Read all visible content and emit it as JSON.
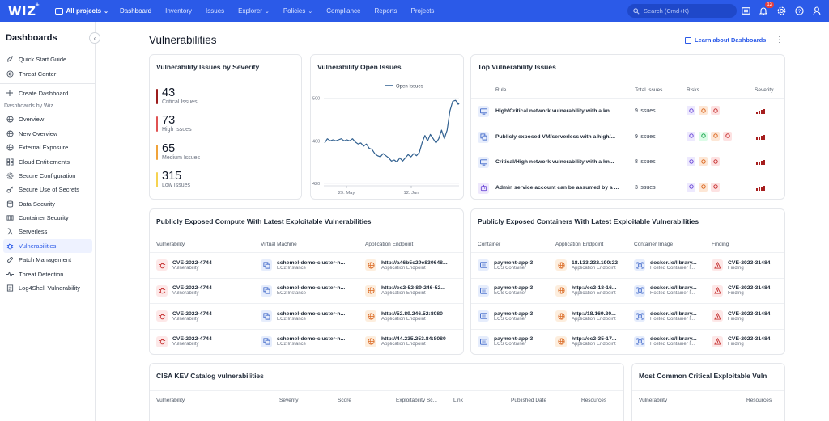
{
  "nav": {
    "logo": "WIZ",
    "logo_sup": "+",
    "projects_label": "All projects",
    "items": [
      {
        "label": "Dashboard",
        "active": true
      },
      {
        "label": "Inventory"
      },
      {
        "label": "Issues"
      },
      {
        "label": "Explorer",
        "dropdown": true
      },
      {
        "label": "Policies",
        "dropdown": true
      },
      {
        "label": "Compliance"
      },
      {
        "label": "Reports"
      },
      {
        "label": "Projects"
      }
    ],
    "search_placeholder": "Search (Cmd+K)",
    "notification_count": "12"
  },
  "sidebar": {
    "title": "Dashboards",
    "top_items": [
      {
        "label": "Quick Start Guide",
        "icon": "rocket-icon"
      },
      {
        "label": "Threat Center",
        "icon": "target-icon"
      }
    ],
    "create_label": "Create Dashboard",
    "group_label": "Dashboards by Wiz",
    "items": [
      {
        "label": "Overview",
        "icon": "globe-icon"
      },
      {
        "label": "New Overview",
        "icon": "globe-icon"
      },
      {
        "label": "External Exposure",
        "icon": "globe-icon"
      },
      {
        "label": "Cloud Entitlements",
        "icon": "grid-icon"
      },
      {
        "label": "Secure Configuration",
        "icon": "gear-icon"
      },
      {
        "label": "Secure Use of Secrets",
        "icon": "key-icon"
      },
      {
        "label": "Data Security",
        "icon": "database-icon"
      },
      {
        "label": "Container Security",
        "icon": "container-icon"
      },
      {
        "label": "Serverless",
        "icon": "lambda-icon"
      },
      {
        "label": "Vulnerabilities",
        "icon": "bug-icon",
        "active": true
      },
      {
        "label": "Patch Management",
        "icon": "patch-icon"
      },
      {
        "label": "Threat Detection",
        "icon": "activity-icon"
      },
      {
        "label": "Log4Shell Vulnerability",
        "icon": "log-icon"
      }
    ]
  },
  "page": {
    "title": "Vulnerabilities",
    "learn_label": "Learn about Dashboards"
  },
  "severity_card": {
    "title": "Vulnerability Issues by Severity",
    "rows": [
      {
        "count": "43",
        "label": "Critical Issues",
        "color": "#9b1c1c"
      },
      {
        "count": "73",
        "label": "High Issues",
        "color": "#e05252"
      },
      {
        "count": "65",
        "label": "Medium Issues",
        "color": "#f0a33a"
      },
      {
        "count": "315",
        "label": "Low Issues",
        "color": "#f6d351"
      }
    ]
  },
  "open_issues_card": {
    "title": "Vulnerability Open Issues"
  },
  "chart_data": {
    "type": "line",
    "title": "Vulnerability Open Issues",
    "legend": "Open Issues",
    "legend_position": "top",
    "y_ticks": [
      "500",
      "460",
      "420"
    ],
    "x_ticks": [
      "29. May",
      "12. Jun"
    ],
    "ylim": [
      420,
      505
    ],
    "grid": true,
    "series": [
      {
        "name": "Open Issues",
        "color": "#2f5f8f",
        "values": [
          458,
          462,
          460,
          461,
          460,
          461,
          462,
          460,
          461,
          460,
          462,
          459,
          457,
          458,
          455,
          457,
          453,
          452,
          448,
          446,
          445,
          448,
          446,
          444,
          441,
          442,
          440,
          444,
          441,
          444,
          447,
          445,
          448,
          446,
          449,
          458,
          465,
          460,
          466,
          462,
          458,
          462,
          470,
          462,
          470,
          488,
          497,
          498,
          495
        ]
      }
    ]
  },
  "top_issues_card": {
    "title": "Top Vulnerability Issues",
    "headers": {
      "rule": "Rule",
      "total": "Total Issues",
      "risks": "Risks",
      "severity": "Severity"
    },
    "rows": [
      {
        "rule": "High/Critical network vulnerability with a kn...",
        "issues": "9 issues",
        "risks": [
          "purple",
          "orange",
          "red"
        ],
        "icon": "network-icon"
      },
      {
        "rule": "Publicly exposed VM/serverless with a high/...",
        "issues": "9 issues",
        "risks": [
          "purple",
          "green",
          "orange",
          "red"
        ],
        "icon": "vm-icon"
      },
      {
        "rule": "Critical/High network vulnerability with a kn...",
        "issues": "8 issues",
        "risks": [
          "purple",
          "orange",
          "red"
        ],
        "icon": "network-icon"
      },
      {
        "rule": "Admin service account can be assumed by a ...",
        "issues": "3 issues",
        "risks": [
          "purple",
          "orange",
          "red"
        ],
        "icon": "robot-icon"
      }
    ]
  },
  "compute_card": {
    "title": "Publicly Exposed Compute With Latest Exploitable Vulnerabilities",
    "headers": {
      "vuln": "Vulnerability",
      "vm": "Virtual Machine",
      "endpoint": "Application Endpoint"
    },
    "rows": [
      {
        "vuln": "CVE-2022-4744",
        "vuln_sub": "Vulnerability",
        "vm": "schemel-demo-cluster-n...",
        "vm_sub": "EC2 Instance",
        "endpoint": "http://a46b5c29e830648...",
        "endpoint_sub": "Application Endpoint"
      },
      {
        "vuln": "CVE-2022-4744",
        "vuln_sub": "Vulnerability",
        "vm": "schemel-demo-cluster-n...",
        "vm_sub": "EC2 Instance",
        "endpoint": "http://ec2-52-89-246-52...",
        "endpoint_sub": "Application Endpoint"
      },
      {
        "vuln": "CVE-2022-4744",
        "vuln_sub": "Vulnerability",
        "vm": "schemel-demo-cluster-n...",
        "vm_sub": "EC2 Instance",
        "endpoint": "http://52.89.246.52:8080",
        "endpoint_sub": "Application Endpoint"
      },
      {
        "vuln": "CVE-2022-4744",
        "vuln_sub": "Vulnerability",
        "vm": "schemel-demo-cluster-n...",
        "vm_sub": "EC2 Instance",
        "endpoint": "http://44.235.253.84:8080",
        "endpoint_sub": "Application Endpoint"
      }
    ]
  },
  "containers_card": {
    "title": "Publicly Exposed Containers With Latest Exploitable Vulnerabilities",
    "headers": {
      "container": "Container",
      "endpoint": "Application Endpoint",
      "image": "Container Image",
      "finding": "Finding"
    },
    "rows": [
      {
        "container": "payment-app-3",
        "container_sub": "ECS Container",
        "endpoint": "18.133.232.190:22",
        "endpoint_sub": "Application Endpoint",
        "image": "docker.io/library...",
        "image_sub": "Hosted Container I...",
        "finding": "CVE-2023-31484",
        "finding_sub": "Finding"
      },
      {
        "container": "payment-app-3",
        "container_sub": "ECS Container",
        "endpoint": "http://ec2-18-16...",
        "endpoint_sub": "Application Endpoint",
        "image": "docker.io/library...",
        "image_sub": "Hosted Container I...",
        "finding": "CVE-2023-31484",
        "finding_sub": "Finding"
      },
      {
        "container": "payment-app-3",
        "container_sub": "ECS Container",
        "endpoint": "http://18.169.20...",
        "endpoint_sub": "Application Endpoint",
        "image": "docker.io/library...",
        "image_sub": "Hosted Container I...",
        "finding": "CVE-2023-31484",
        "finding_sub": "Finding"
      },
      {
        "container": "payment-app-3",
        "container_sub": "ECS Container",
        "endpoint": "http://ec2-35-17...",
        "endpoint_sub": "Application Endpoint",
        "image": "docker.io/library...",
        "image_sub": "Hosted Container I...",
        "finding": "CVE-2023-31484",
        "finding_sub": "Finding"
      }
    ]
  },
  "kev_card": {
    "title": "CISA KEV Catalog vulnerabilities",
    "headers": [
      "Vulnerability",
      "Severity",
      "Score",
      "Exploitability Sc...",
      "Link",
      "Published Date",
      "Resources"
    ]
  },
  "common_card": {
    "title": "Most Common Critical Exploitable Vuln",
    "headers": [
      "Vulnerability",
      "Resources"
    ]
  }
}
